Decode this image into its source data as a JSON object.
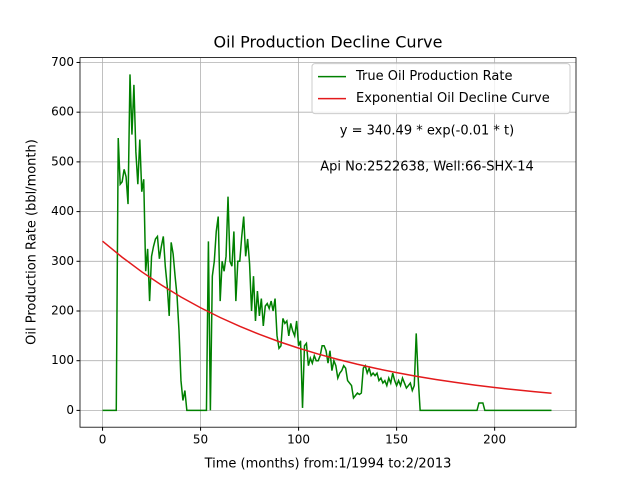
{
  "chart_data": {
    "type": "line",
    "title": "Oil Production Decline Curve",
    "xlabel": "Time (months) from:1/1994 to:2/2013",
    "ylabel": "Oil Production Rate (bbl/month)",
    "annotations": [
      "y = 340.49 * exp(-0.01 * t)",
      "Api No:2522638, Well:66-SHX-14"
    ],
    "xlim": [
      -11.5,
      241.5
    ],
    "ylim": [
      -33.8,
      709.8
    ],
    "xticks": [
      0,
      50,
      100,
      150,
      200
    ],
    "yticks": [
      0,
      100,
      200,
      300,
      400,
      500,
      600,
      700
    ],
    "grid": true,
    "legend": "upper right",
    "series": [
      {
        "name": "True Oil Production Rate",
        "color": "#008000",
        "x": [
          0,
          7,
          8,
          9,
          10,
          11,
          12,
          13,
          14,
          15,
          16,
          17,
          18,
          19,
          20,
          21,
          22,
          23,
          24,
          25,
          26,
          27,
          28,
          29,
          30,
          31,
          32,
          33,
          34,
          35,
          36,
          37,
          38,
          39,
          40,
          41,
          42,
          43,
          53,
          54,
          55,
          56,
          57,
          58,
          59,
          60,
          61,
          62,
          63,
          64,
          65,
          66,
          67,
          68,
          69,
          70,
          71,
          72,
          73,
          74,
          75,
          76,
          77,
          78,
          79,
          80,
          81,
          82,
          83,
          84,
          85,
          86,
          87,
          88,
          89,
          90,
          91,
          92,
          93,
          94,
          95,
          96,
          97,
          98,
          99,
          100,
          101,
          102,
          103,
          104,
          105,
          106,
          107,
          108,
          109,
          110,
          111,
          112,
          113,
          114,
          115,
          116,
          117,
          118,
          119,
          120,
          121,
          122,
          123,
          124,
          125,
          126,
          127,
          128,
          129,
          130,
          131,
          132,
          133,
          134,
          135,
          136,
          137,
          138,
          139,
          140,
          141,
          142,
          143,
          144,
          145,
          146,
          147,
          148,
          149,
          150,
          151,
          152,
          153,
          154,
          155,
          156,
          157,
          158,
          159,
          160,
          161,
          162,
          163,
          191,
          192,
          194,
          195,
          229
        ],
        "values": [
          0,
          0,
          548,
          455,
          460,
          485,
          470,
          415,
          676,
          555,
          655,
          520,
          455,
          545,
          440,
          465,
          280,
          325,
          220,
          310,
          330,
          345,
          350,
          305,
          330,
          350,
          290,
          250,
          190,
          338,
          315,
          270,
          230,
          160,
          60,
          20,
          40,
          0,
          0,
          340,
          0,
          270,
          300,
          360,
          390,
          220,
          300,
          280,
          310,
          430,
          300,
          290,
          360,
          220,
          300,
          300,
          350,
          390,
          310,
          345,
          295,
          200,
          270,
          180,
          240,
          190,
          225,
          170,
          210,
          215,
          205,
          220,
          200,
          225,
          150,
          125,
          130,
          185,
          175,
          180,
          150,
          175,
          160,
          150,
          180,
          130,
          140,
          5,
          130,
          135,
          90,
          105,
          95,
          110,
          100,
          100,
          110,
          130,
          130,
          120,
          95,
          120,
          80,
          100,
          90,
          65,
          75,
          80,
          90,
          85,
          60,
          55,
          50,
          25,
          30,
          35,
          32,
          35,
          85,
          90,
          75,
          85,
          70,
          75,
          70,
          75,
          60,
          65,
          55,
          60,
          50,
          65,
          55,
          75,
          60,
          50,
          60,
          50,
          65,
          55,
          45,
          50,
          55,
          40,
          50,
          155,
          65,
          0,
          0,
          0,
          15,
          15,
          0,
          0
        ]
      },
      {
        "name": "Exponential Oil Decline Curve",
        "color": "#e31a1c",
        "x": [
          0,
          10,
          20,
          30,
          40,
          50,
          60,
          70,
          80,
          90,
          100,
          110,
          120,
          130,
          140,
          150,
          160,
          170,
          180,
          190,
          200,
          210,
          220,
          229
        ],
        "values": [
          340.5,
          308.1,
          278.8,
          252.2,
          228.2,
          206.5,
          186.9,
          169.1,
          153.0,
          138.4,
          125.3,
          113.3,
          102.6,
          92.8,
          84.0,
          76.0,
          68.7,
          62.2,
          56.3,
          50.9,
          46.1,
          41.7,
          37.7,
          34.4
        ]
      }
    ]
  }
}
